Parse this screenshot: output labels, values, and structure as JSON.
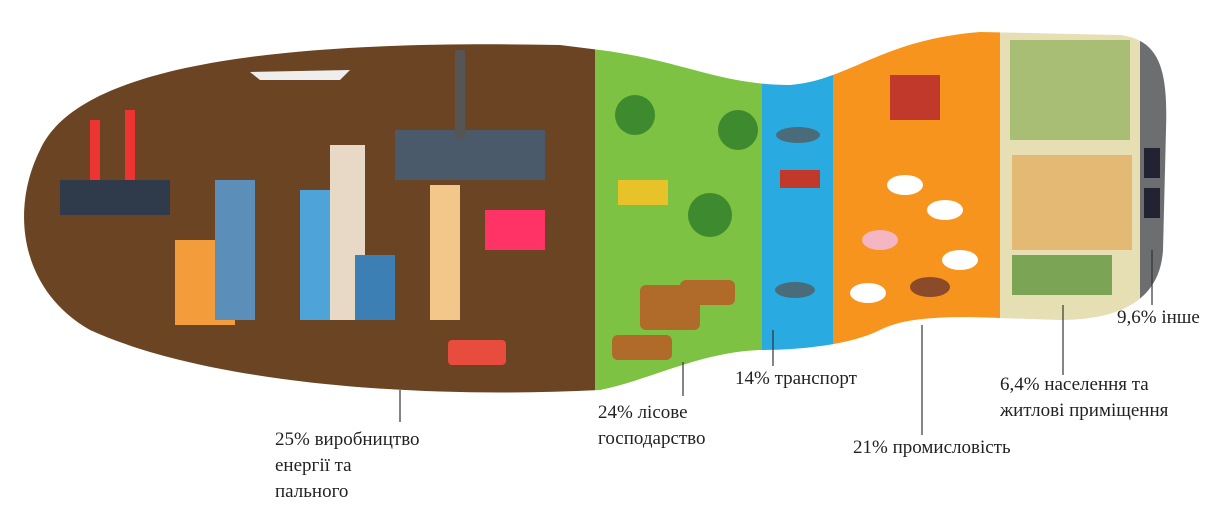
{
  "segments": [
    {
      "color": "#6b4423",
      "label": [
        "25% виробництво",
        "енергії та",
        "пального"
      ]
    },
    {
      "color": "#7dc242",
      "label": [
        "24% лісове",
        "господарство"
      ]
    },
    {
      "color": "#29aae1",
      "label": [
        "14% транспорт"
      ]
    },
    {
      "color": "#f7941d",
      "label": [
        "21% промисловість"
      ]
    },
    {
      "color": "#e6dfb3",
      "label": [
        "6,4% населення та",
        "житлові приміщення"
      ]
    },
    {
      "color": "#6d6e70",
      "label": [
        "9,6% інше"
      ]
    }
  ]
}
